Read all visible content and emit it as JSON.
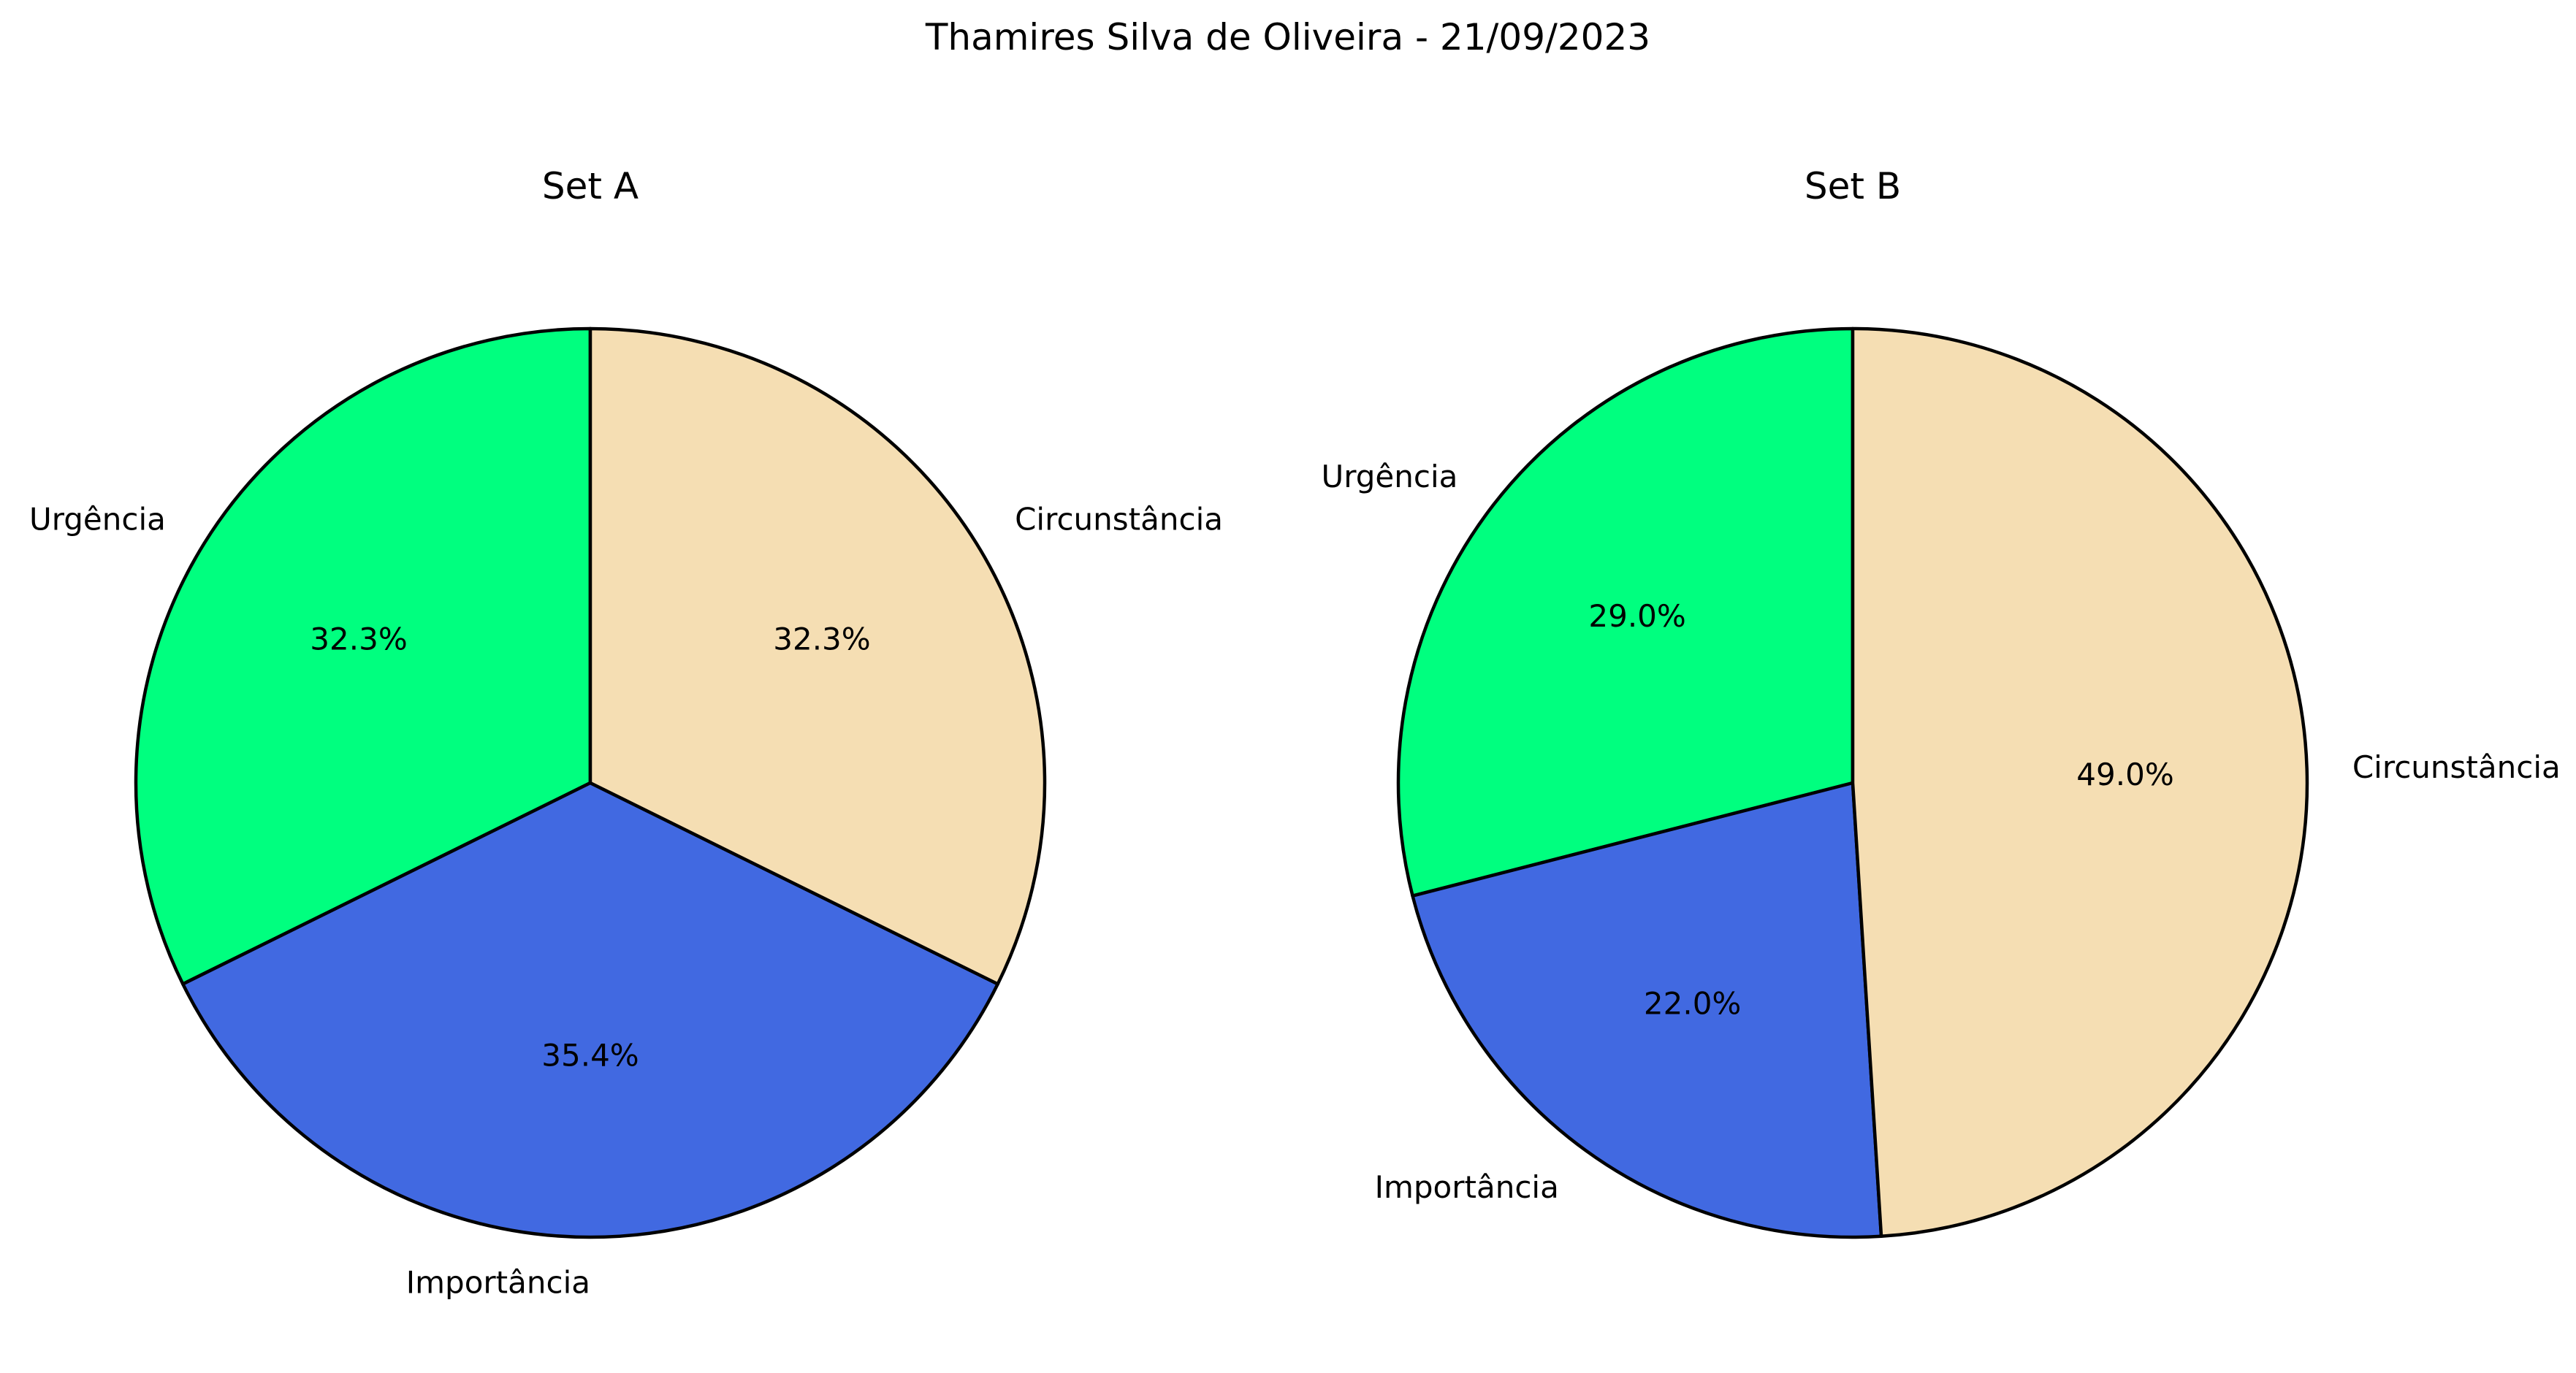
{
  "figure": {
    "suptitle": "Thamires Silva de Oliveira - 21/09/2023"
  },
  "chart_data": [
    {
      "type": "pie",
      "title": "Set A",
      "start_angle_deg": 90,
      "direction": "counterclockwise",
      "labels": [
        "Urgência",
        "Importância",
        "Circunstância"
      ],
      "values": [
        32.3,
        35.4,
        32.3
      ],
      "percent_labels": [
        "32.3%",
        "35.4%",
        "32.3%"
      ],
      "colors": [
        "#00ff7f",
        "#4169e1",
        "#f5deb3"
      ],
      "edge_color": "#000000"
    },
    {
      "type": "pie",
      "title": "Set B",
      "start_angle_deg": 90,
      "direction": "counterclockwise",
      "labels": [
        "Urgência",
        "Importância",
        "Circunstância"
      ],
      "values": [
        29.0,
        22.0,
        49.0
      ],
      "percent_labels": [
        "29.0%",
        "22.0%",
        "49.0%"
      ],
      "colors": [
        "#00ff7f",
        "#4169e1",
        "#f5deb3"
      ],
      "edge_color": "#000000"
    }
  ]
}
